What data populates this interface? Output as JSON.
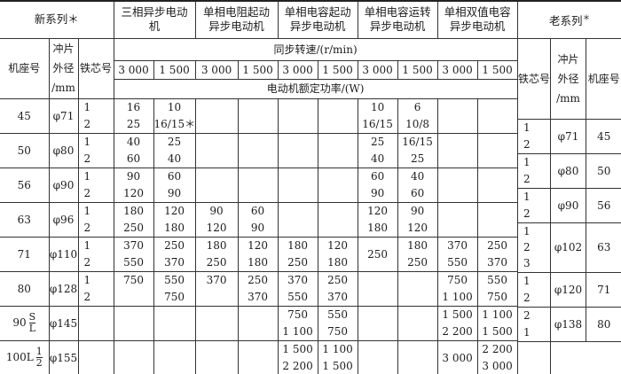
{
  "left_header": {
    "new_series": "新系列＊",
    "groups": [
      "三相异步电动机",
      "单相电阻起动异步电动机",
      "单相电容起动异步电动机",
      "单相电容运转异步电动机",
      "单相双值电容异步电动机"
    ],
    "frame_no": "机座号",
    "lamination_od": [
      "冲片",
      "外径",
      "/mm"
    ],
    "core_no": "铁芯号",
    "sync_speed": "同步转速/(r/min)",
    "speeds": [
      "3 000",
      "1 500",
      "3 000",
      "1 500",
      "3 000",
      "1 500",
      "3 000",
      "1 500",
      "3 000",
      "1 500"
    ],
    "rated_power": "电动机额定功率/(W)"
  },
  "left_rows": [
    {
      "frame": "45",
      "od": "φ71",
      "core": [
        "1",
        "2"
      ],
      "cells": [
        [
          "16",
          "25"
        ],
        [
          "10",
          "16/15＊＊"
        ],
        null,
        null,
        null,
        null,
        [
          "10",
          "16/15"
        ],
        [
          "6",
          "10/8"
        ],
        null,
        null
      ]
    },
    {
      "frame": "50",
      "od": "φ80",
      "core": [
        "1",
        "2"
      ],
      "cells": [
        [
          "40",
          "60"
        ],
        [
          "25",
          "40"
        ],
        null,
        null,
        null,
        null,
        [
          "25",
          "40"
        ],
        [
          "16/15",
          "25"
        ],
        null,
        null
      ]
    },
    {
      "frame": "56",
      "od": "φ90",
      "core": [
        "1",
        "2"
      ],
      "cells": [
        [
          "90",
          "120"
        ],
        [
          "60",
          "90"
        ],
        null,
        null,
        null,
        null,
        [
          "60",
          "90"
        ],
        [
          "40",
          "60"
        ],
        null,
        null
      ]
    },
    {
      "frame": "63",
      "od": "φ96",
      "core": [
        "1",
        "2"
      ],
      "cells": [
        [
          "180",
          "250"
        ],
        [
          "120",
          "180"
        ],
        [
          "90",
          "120"
        ],
        [
          "60",
          "90"
        ],
        null,
        null,
        [
          "120",
          "180"
        ],
        [
          "90",
          "120"
        ],
        null,
        null
      ]
    },
    {
      "frame": "71",
      "od": "φ110",
      "core": [
        "1",
        "2"
      ],
      "cells": [
        [
          "370",
          "550"
        ],
        [
          "250",
          "370"
        ],
        [
          "180",
          "250"
        ],
        [
          "120",
          "180"
        ],
        [
          "180",
          "250"
        ],
        [
          "120",
          "180"
        ],
        "250",
        [
          "180",
          "250"
        ],
        [
          "370",
          "550"
        ],
        [
          "250",
          "370"
        ]
      ]
    },
    {
      "frame": "80",
      "od": "φ128",
      "core": [
        "1",
        "2"
      ],
      "cells": [
        [
          "750",
          ""
        ],
        [
          "550",
          "750"
        ],
        [
          "370",
          ""
        ],
        [
          "250",
          "370"
        ],
        [
          "370",
          "550"
        ],
        [
          "250",
          "370"
        ],
        null,
        null,
        [
          "750",
          "1 100"
        ],
        [
          "550",
          "750"
        ]
      ]
    },
    {
      "frame": "90",
      "frame_frac": [
        "S",
        "L"
      ],
      "od": "φ145",
      "core": null,
      "cells": [
        null,
        null,
        null,
        null,
        [
          "750",
          "1 100"
        ],
        [
          "550",
          "750"
        ],
        null,
        null,
        [
          "1 500",
          "2 200"
        ],
        [
          "1 100",
          "1 500"
        ]
      ]
    },
    {
      "frame": "100L",
      "frame_frac": [
        "1",
        "2"
      ],
      "od": "φ155",
      "core": null,
      "cells": [
        null,
        null,
        null,
        null,
        [
          "1 500",
          "2 200"
        ],
        [
          "1 100",
          "1 500"
        ],
        null,
        null,
        "3 000",
        [
          "2 200",
          "3 000"
        ]
      ]
    }
  ],
  "right_header": {
    "old_series": "老系列",
    "old_series_mark": "＊",
    "core_no": "铁芯号",
    "lamination_od": [
      "冲片",
      "外径",
      "/mm"
    ],
    "frame_no": "机座号"
  },
  "right_rows": [
    {
      "core": [
        "1",
        "2"
      ],
      "od": "φ71",
      "frame": "45"
    },
    {
      "core": [
        "1",
        "2"
      ],
      "od": "φ80",
      "frame": "50"
    },
    {
      "core": [
        "1",
        "2"
      ],
      "od": "φ90",
      "frame": "56"
    },
    {
      "core": [
        "1",
        "2",
        "3"
      ],
      "od": "φ102",
      "frame": "63"
    },
    {
      "core": [
        "1",
        "2"
      ],
      "od": "φ120",
      "frame": "71"
    },
    {
      "core": [
        "2",
        "1"
      ],
      "od": "φ138",
      "frame": "80"
    },
    {
      "core": null,
      "od": "",
      "frame": ""
    }
  ]
}
